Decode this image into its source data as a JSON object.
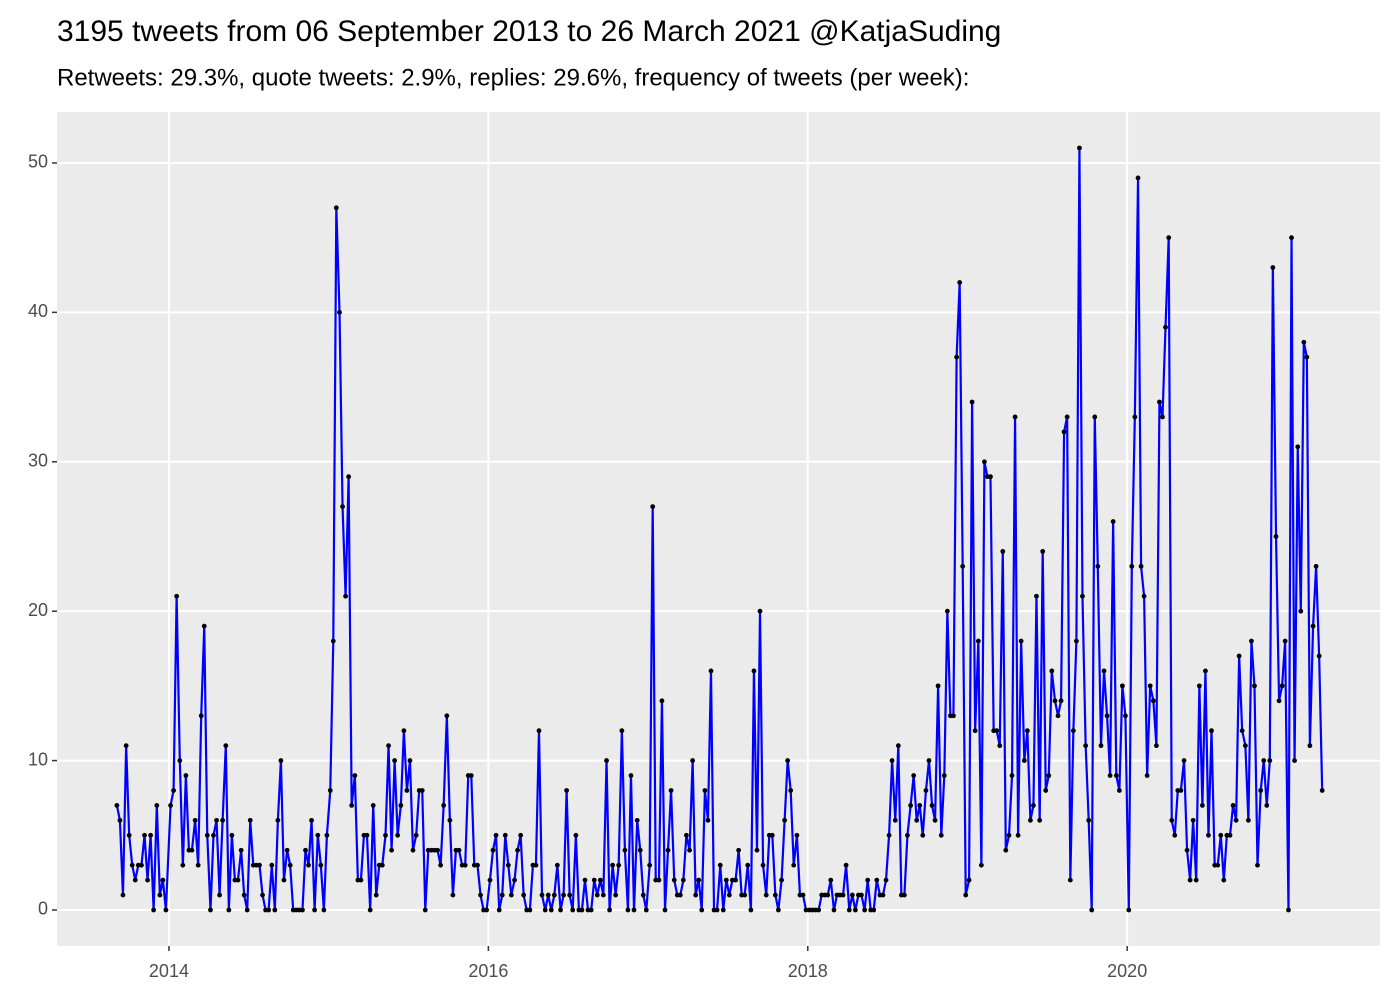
{
  "chart_data": {
    "type": "line",
    "title": "3195 tweets from 06 September 2013 to 26 March 2021 @KatjaSuding",
    "subtitle": "Retweets: 29.3%, quote tweets: 2.9%, replies: 29.6%, frequency of tweets (per week):",
    "x": [
      2013.674,
      2013.693,
      2013.712,
      2013.732,
      2013.751,
      2013.77,
      2013.789,
      2013.808,
      2013.828,
      2013.847,
      2013.866,
      2013.885,
      2013.904,
      2013.924,
      2013.943,
      2013.962,
      2013.981,
      2014.01,
      2014.029,
      2014.048,
      2014.068,
      2014.087,
      2014.106,
      2014.125,
      2014.144,
      2014.164,
      2014.183,
      2014.202,
      2014.221,
      2014.24,
      2014.26,
      2014.279,
      2014.298,
      2014.317,
      2014.336,
      2014.356,
      2014.375,
      2014.394,
      2014.413,
      2014.432,
      2014.452,
      2014.471,
      2014.49,
      2014.509,
      2014.528,
      2014.548,
      2014.567,
      2014.586,
      2014.605,
      2014.624,
      2014.644,
      2014.663,
      2014.682,
      2014.701,
      2014.72,
      2014.74,
      2014.759,
      2014.778,
      2014.797,
      2014.816,
      2014.836,
      2014.855,
      2014.874,
      2014.893,
      2014.912,
      2014.932,
      2014.951,
      2014.97,
      2014.989,
      2015.01,
      2015.029,
      2015.048,
      2015.068,
      2015.087,
      2015.106,
      2015.125,
      2015.144,
      2015.164,
      2015.183,
      2015.202,
      2015.221,
      2015.24,
      2015.26,
      2015.279,
      2015.298,
      2015.317,
      2015.336,
      2015.356,
      2015.375,
      2015.394,
      2015.413,
      2015.432,
      2015.452,
      2015.471,
      2015.49,
      2015.509,
      2015.528,
      2015.548,
      2015.567,
      2015.586,
      2015.605,
      2015.624,
      2015.644,
      2015.663,
      2015.682,
      2015.701,
      2015.72,
      2015.74,
      2015.759,
      2015.778,
      2015.797,
      2015.816,
      2015.836,
      2015.855,
      2015.874,
      2015.893,
      2015.912,
      2015.932,
      2015.951,
      2015.97,
      2015.989,
      2016.01,
      2016.029,
      2016.048,
      2016.068,
      2016.087,
      2016.106,
      2016.125,
      2016.144,
      2016.164,
      2016.183,
      2016.202,
      2016.221,
      2016.24,
      2016.26,
      2016.279,
      2016.298,
      2016.317,
      2016.336,
      2016.356,
      2016.375,
      2016.394,
      2016.413,
      2016.432,
      2016.452,
      2016.471,
      2016.49,
      2016.509,
      2016.528,
      2016.548,
      2016.567,
      2016.586,
      2016.605,
      2016.624,
      2016.644,
      2016.663,
      2016.682,
      2016.701,
      2016.72,
      2016.74,
      2016.759,
      2016.778,
      2016.797,
      2016.816,
      2016.836,
      2016.855,
      2016.874,
      2016.893,
      2016.912,
      2016.932,
      2016.951,
      2016.97,
      2016.989,
      2017.01,
      2017.029,
      2017.048,
      2017.068,
      2017.087,
      2017.106,
      2017.125,
      2017.144,
      2017.164,
      2017.183,
      2017.202,
      2017.221,
      2017.24,
      2017.26,
      2017.279,
      2017.298,
      2017.317,
      2017.336,
      2017.356,
      2017.375,
      2017.394,
      2017.413,
      2017.432,
      2017.452,
      2017.471,
      2017.49,
      2017.509,
      2017.528,
      2017.548,
      2017.567,
      2017.586,
      2017.605,
      2017.624,
      2017.644,
      2017.663,
      2017.682,
      2017.701,
      2017.72,
      2017.74,
      2017.759,
      2017.778,
      2017.797,
      2017.816,
      2017.836,
      2017.855,
      2017.874,
      2017.893,
      2017.912,
      2017.932,
      2017.951,
      2017.97,
      2017.989,
      2018.01,
      2018.029,
      2018.048,
      2018.068,
      2018.087,
      2018.106,
      2018.125,
      2018.144,
      2018.164,
      2018.183,
      2018.202,
      2018.221,
      2018.24,
      2018.26,
      2018.279,
      2018.298,
      2018.317,
      2018.336,
      2018.356,
      2018.375,
      2018.394,
      2018.413,
      2018.432,
      2018.452,
      2018.471,
      2018.49,
      2018.509,
      2018.528,
      2018.548,
      2018.567,
      2018.586,
      2018.605,
      2018.624,
      2018.644,
      2018.663,
      2018.682,
      2018.701,
      2018.72,
      2018.74,
      2018.759,
      2018.778,
      2018.797,
      2018.816,
      2018.836,
      2018.855,
      2018.874,
      2018.893,
      2018.912,
      2018.932,
      2018.951,
      2018.97,
      2018.989,
      2019.01,
      2019.029,
      2019.048,
      2019.068,
      2019.087,
      2019.106,
      2019.125,
      2019.144,
      2019.164,
      2019.183,
      2019.202,
      2019.221,
      2019.24,
      2019.26,
      2019.279,
      2019.298,
      2019.317,
      2019.336,
      2019.356,
      2019.375,
      2019.394,
      2019.413,
      2019.432,
      2019.452,
      2019.471,
      2019.49,
      2019.509,
      2019.528,
      2019.548,
      2019.567,
      2019.586,
      2019.605,
      2019.624,
      2019.644,
      2019.663,
      2019.682,
      2019.701,
      2019.72,
      2019.74,
      2019.759,
      2019.778,
      2019.797,
      2019.816,
      2019.836,
      2019.855,
      2019.874,
      2019.893,
      2019.912,
      2019.932,
      2019.951,
      2019.97,
      2019.989,
      2020.01,
      2020.029,
      2020.048,
      2020.068,
      2020.087,
      2020.106,
      2020.125,
      2020.144,
      2020.164,
      2020.183,
      2020.202,
      2020.221,
      2020.24,
      2020.26,
      2020.279,
      2020.298,
      2020.317,
      2020.336,
      2020.356,
      2020.375,
      2020.394,
      2020.413,
      2020.432,
      2020.452,
      2020.471,
      2020.49,
      2020.509,
      2020.528,
      2020.548,
      2020.567,
      2020.586,
      2020.605,
      2020.624,
      2020.644,
      2020.663,
      2020.682,
      2020.701,
      2020.72,
      2020.74,
      2020.759,
      2020.778,
      2020.797,
      2020.816,
      2020.836,
      2020.855,
      2020.874,
      2020.893,
      2020.912,
      2020.932,
      2020.951,
      2020.97,
      2020.989,
      2021.01,
      2021.029,
      2021.048,
      2021.068,
      2021.087,
      2021.106,
      2021.125,
      2021.144,
      2021.164,
      2021.183,
      2021.202,
      2021.221
    ],
    "values": [
      7,
      6,
      1,
      11,
      5,
      3,
      2,
      3,
      3,
      5,
      2,
      5,
      0,
      7,
      1,
      2,
      0,
      7,
      8,
      21,
      10,
      3,
      9,
      4,
      4,
      6,
      3,
      13,
      19,
      5,
      0,
      5,
      6,
      1,
      6,
      11,
      0,
      5,
      2,
      2,
      4,
      1,
      0,
      6,
      3,
      3,
      3,
      1,
      0,
      0,
      3,
      0,
      6,
      10,
      2,
      4,
      3,
      0,
      0,
      0,
      0,
      4,
      3,
      6,
      0,
      5,
      3,
      0,
      5,
      8,
      18,
      47,
      40,
      27,
      21,
      29,
      7,
      9,
      2,
      2,
      5,
      5,
      0,
      7,
      1,
      3,
      3,
      5,
      11,
      4,
      10,
      5,
      7,
      12,
      8,
      10,
      4,
      5,
      8,
      8,
      0,
      4,
      4,
      4,
      4,
      3,
      7,
      13,
      6,
      1,
      4,
      4,
      3,
      3,
      9,
      9,
      3,
      3,
      1,
      0,
      0,
      2,
      4,
      5,
      0,
      1,
      5,
      3,
      1,
      2,
      4,
      5,
      1,
      0,
      0,
      3,
      3,
      12,
      1,
      0,
      1,
      0,
      1,
      3,
      0,
      1,
      8,
      1,
      0,
      5,
      0,
      0,
      2,
      0,
      0,
      2,
      1,
      2,
      1,
      10,
      0,
      3,
      1,
      3,
      12,
      4,
      0,
      9,
      0,
      6,
      4,
      1,
      0,
      3,
      27,
      2,
      2,
      14,
      0,
      4,
      8,
      2,
      1,
      1,
      2,
      5,
      4,
      10,
      1,
      2,
      0,
      8,
      6,
      16,
      0,
      0,
      3,
      0,
      2,
      1,
      2,
      2,
      4,
      1,
      1,
      3,
      0,
      16,
      4,
      20,
      3,
      1,
      5,
      5,
      1,
      0,
      2,
      6,
      10,
      8,
      3,
      5,
      1,
      1,
      0,
      0,
      0,
      0,
      0,
      1,
      1,
      1,
      2,
      0,
      1,
      1,
      1,
      3,
      0,
      1,
      0,
      1,
      1,
      0,
      2,
      0,
      0,
      2,
      1,
      1,
      2,
      5,
      10,
      6,
      11,
      1,
      1,
      5,
      7,
      9,
      6,
      7,
      5,
      8,
      10,
      7,
      6,
      15,
      5,
      9,
      20,
      13,
      13,
      37,
      42,
      23,
      1,
      2,
      34,
      12,
      18,
      3,
      30,
      29,
      29,
      12,
      12,
      11,
      24,
      4,
      5,
      9,
      33,
      5,
      18,
      10,
      12,
      6,
      7,
      21,
      6,
      24,
      8,
      9,
      16,
      14,
      13,
      14,
      32,
      33,
      2,
      12,
      18,
      51,
      21,
      11,
      6,
      0,
      33,
      23,
      11,
      16,
      13,
      9,
      26,
      9,
      8,
      15,
      13,
      0,
      23,
      33,
      49,
      23,
      21,
      9,
      15,
      14,
      11,
      34,
      33,
      39,
      45,
      6,
      5,
      8,
      8,
      10,
      4,
      2,
      6,
      2,
      15,
      7,
      16,
      5,
      12,
      3,
      3,
      5,
      2,
      5,
      5,
      7,
      6,
      17,
      12,
      11,
      6,
      18,
      15,
      3,
      8,
      10,
      7,
      10,
      43,
      25,
      14,
      15,
      18,
      0,
      45,
      10,
      31,
      20,
      38,
      37,
      11,
      19,
      23,
      17,
      8
    ],
    "color": "#0000ff",
    "point_color": "#000000",
    "xlim": [
      2013.299,
      2021.583
    ],
    "xticks": [
      2014,
      2016,
      2018,
      2020
    ],
    "ylim": [
      -2.41,
      53.41
    ],
    "yticks": [
      0,
      10,
      20,
      30,
      40,
      50
    ],
    "grid": true
  }
}
